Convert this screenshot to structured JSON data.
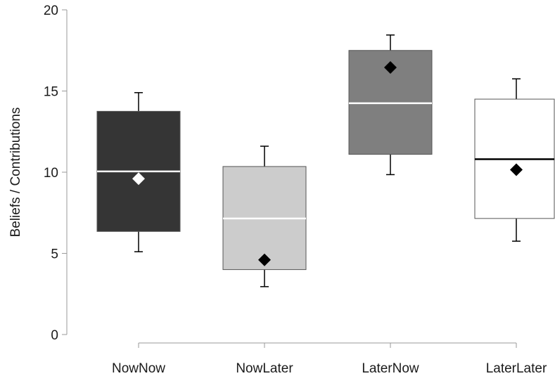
{
  "chart_data": {
    "type": "box",
    "title": "",
    "xlabel": "",
    "ylabel": "Beliefs / Contributions",
    "ylim": [
      0,
      20
    ],
    "yticks": [
      0,
      5,
      10,
      15,
      20
    ],
    "grid": false,
    "categories": [
      "NowNow",
      "NowLater",
      "LaterNow",
      "LaterLater"
    ],
    "boxes": [
      {
        "category": "NowNow",
        "whisker_low": 5.1,
        "q1": 6.35,
        "median": 10.05,
        "q3": 13.75,
        "whisker_high": 14.9,
        "mean": 9.6,
        "fill": "#353535",
        "median_color": "#ffffff",
        "mean_color": "#ffffff"
      },
      {
        "category": "NowLater",
        "whisker_low": 2.95,
        "q1": 4.0,
        "median": 7.15,
        "q3": 10.35,
        "whisker_high": 11.6,
        "mean": 4.6,
        "fill": "#cccccc",
        "median_color": "#ffffff",
        "mean_color": "#000000"
      },
      {
        "category": "LaterNow",
        "whisker_low": 9.85,
        "q1": 11.1,
        "median": 14.25,
        "q3": 17.5,
        "whisker_high": 18.45,
        "mean": 16.45,
        "fill": "#7f7f7f",
        "median_color": "#ffffff",
        "mean_color": "#000000"
      },
      {
        "category": "LaterLater",
        "whisker_low": 5.75,
        "q1": 7.15,
        "median": 10.8,
        "q3": 14.5,
        "whisker_high": 15.75,
        "mean": 10.15,
        "fill": "#ffffff",
        "median_color": "#000000",
        "mean_color": "#000000"
      }
    ]
  },
  "colors": {
    "axis": "#999999",
    "box_stroke": "#555555",
    "whisker": "#000000"
  }
}
